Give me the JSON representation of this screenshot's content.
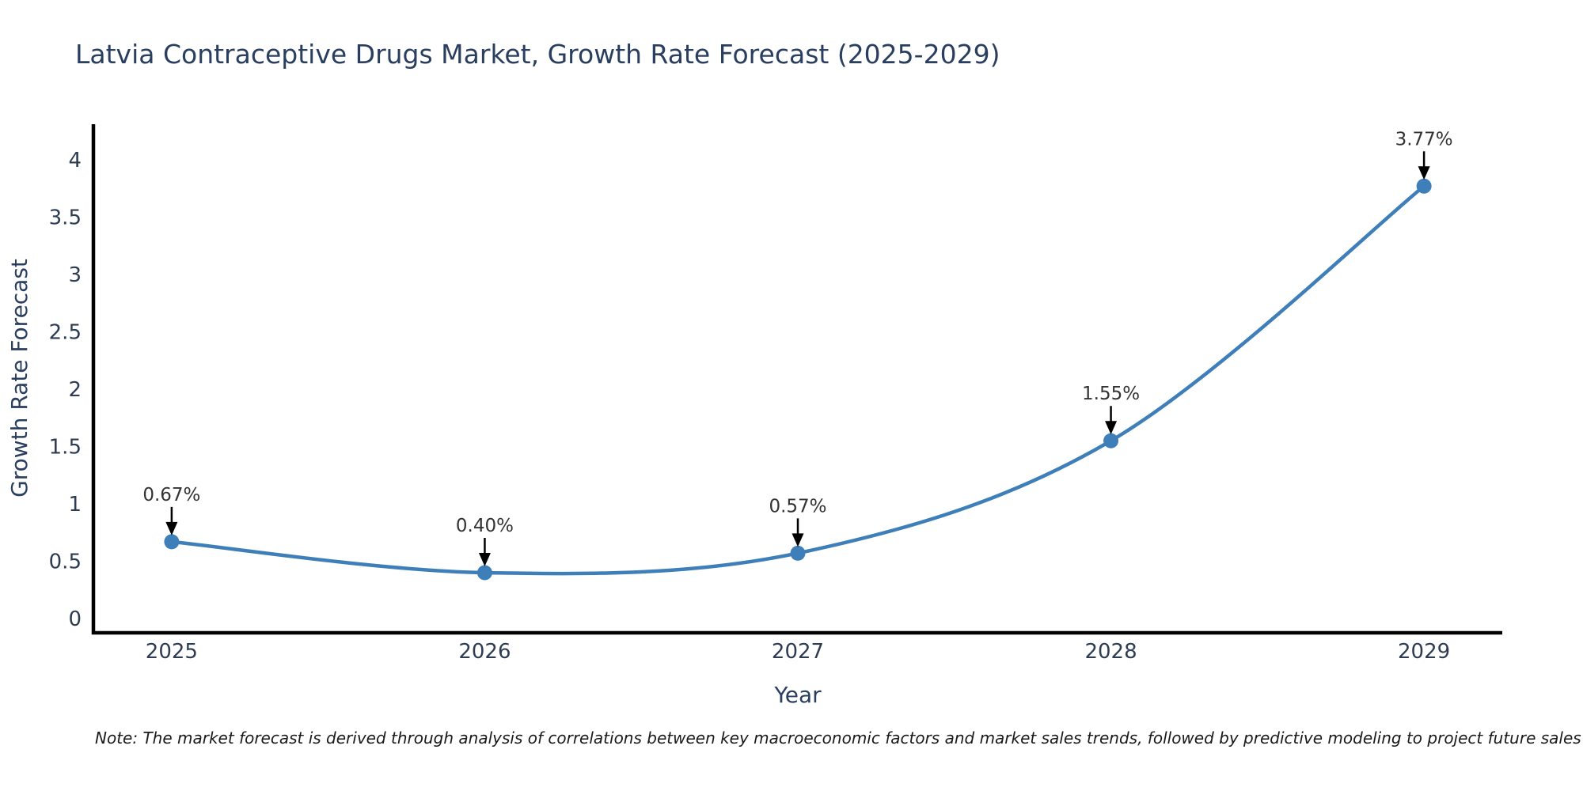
{
  "page": {
    "footnote": "Note: The market forecast is derived through analysis of correlations between key macroeconomic factors and market sales trends, followed by predictive modeling to project future sales"
  },
  "chart_data": {
    "type": "line",
    "title": "Latvia Contraceptive Drugs Market, Growth Rate Forecast (2025-2029)",
    "xlabel": "Year",
    "ylabel": "Growth Rate Forecast",
    "x": [
      2025,
      2026,
      2027,
      2028,
      2029
    ],
    "series": [
      {
        "name": "Growth Rate Forecast",
        "values": [
          0.67,
          0.4,
          0.57,
          1.55,
          3.77
        ]
      }
    ],
    "data_labels": [
      "0.67%",
      "0.40%",
      "0.57%",
      "1.55%",
      "3.77%"
    ],
    "xtick_labels": [
      "2025",
      "2026",
      "2027",
      "2028",
      "2029"
    ],
    "yticks": [
      0,
      0.5,
      1,
      1.5,
      2,
      2.5,
      3,
      3.5,
      4
    ],
    "ytick_labels": [
      "0",
      "0.5",
      "1",
      "1.5",
      "2",
      "2.5",
      "3",
      "3.5",
      "4"
    ],
    "xlim": [
      2024.75,
      2029.25
    ],
    "ylim": [
      -0.124,
      4.31
    ],
    "grid": false,
    "legend": "none",
    "smooth": true,
    "line_color": "#3e7fba",
    "marker_color": "#3e7fba",
    "arrow_color": "#000000",
    "annotation_color": "#333333"
  },
  "style": {
    "background": "#ffffff",
    "title_color": "#2a3f5f",
    "tick_color": "#2e3c52",
    "axis_color": "#000000",
    "note_color": "#1a1a1a"
  }
}
